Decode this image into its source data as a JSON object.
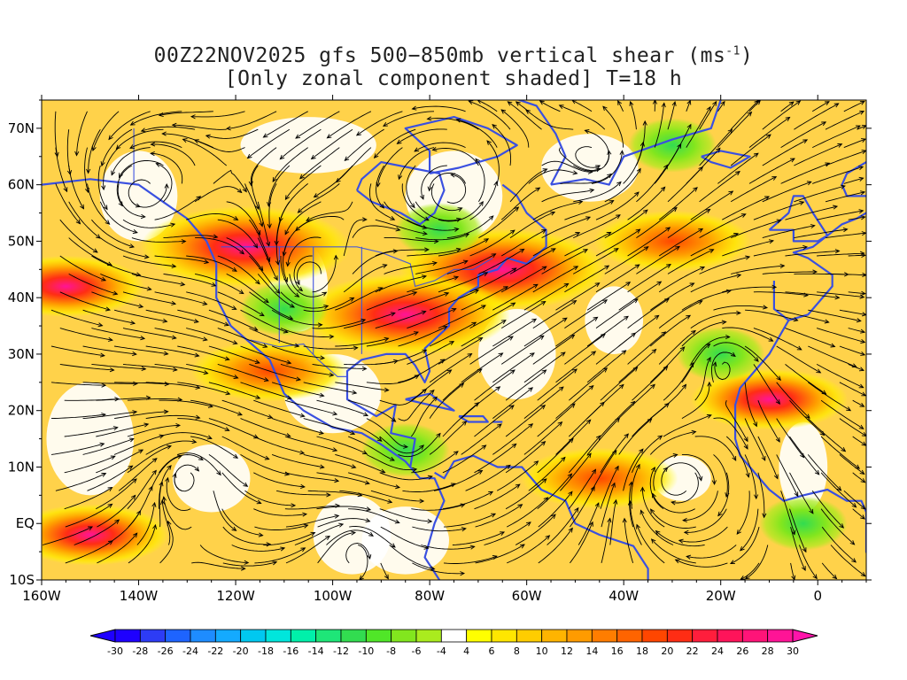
{
  "title": {
    "line1_main": "00Z22NOV2025 gfs 500−850mb vertical shear (ms",
    "line1_sup": "-1",
    "line1_end": ")",
    "line2": "[Only zonal component shaded] T=18 h"
  },
  "map": {
    "lon_range": [
      -160,
      10
    ],
    "lat_range": [
      -10,
      75
    ],
    "y_ticks": [
      {
        "lat": 70,
        "label": "70N"
      },
      {
        "lat": 60,
        "label": "60N"
      },
      {
        "lat": 50,
        "label": "50N"
      },
      {
        "lat": 40,
        "label": "40N"
      },
      {
        "lat": 30,
        "label": "30N"
      },
      {
        "lat": 20,
        "label": "20N"
      },
      {
        "lat": 10,
        "label": "10N"
      },
      {
        "lat": 0,
        "label": "EQ"
      },
      {
        "lat": -10,
        "label": "10S"
      }
    ],
    "x_ticks": [
      {
        "lon": -160,
        "label": "160W"
      },
      {
        "lon": -140,
        "label": "140W"
      },
      {
        "lon": -120,
        "label": "120W"
      },
      {
        "lon": -100,
        "label": "100W"
      },
      {
        "lon": -80,
        "label": "80W"
      },
      {
        "lon": -60,
        "label": "60W"
      },
      {
        "lon": -40,
        "label": "40W"
      },
      {
        "lon": -20,
        "label": "20W"
      },
      {
        "lon": 0,
        "label": "0"
      }
    ],
    "coast_color": "#3a50e0",
    "streamline_color": "#000000",
    "shear_maxima": [
      {
        "lon": -118,
        "lat": 49,
        "value": 28
      },
      {
        "lon": -65,
        "lat": 45,
        "value": 24
      },
      {
        "lon": -85,
        "lat": 37,
        "value": 24
      },
      {
        "lon": -113,
        "lat": 27,
        "value": 20
      },
      {
        "lon": -155,
        "lat": 42,
        "value": 22
      },
      {
        "lon": -10,
        "lat": 22,
        "value": 22
      },
      {
        "lon": -150,
        "lat": -2,
        "value": 22
      },
      {
        "lon": -30,
        "lat": 50,
        "value": 18
      },
      {
        "lon": -45,
        "lat": 8,
        "value": 16
      }
    ],
    "shear_minima": [
      {
        "lon": -20,
        "lat": 30,
        "value": -12
      },
      {
        "lon": -78,
        "lat": 52,
        "value": -10
      },
      {
        "lon": -30,
        "lat": 67,
        "value": -10
      },
      {
        "lon": -3,
        "lat": 0,
        "value": -14
      },
      {
        "lon": -110,
        "lat": 38,
        "value": -10
      },
      {
        "lon": -85,
        "lat": 13,
        "value": -8
      }
    ]
  },
  "colorbar": {
    "levels": [
      "-30",
      "-28",
      "-26",
      "-24",
      "-22",
      "-20",
      "-18",
      "-16",
      "-14",
      "-12",
      "-10",
      "-8",
      "-6",
      "-4",
      "4",
      "6",
      "8",
      "10",
      "12",
      "14",
      "16",
      "18",
      "20",
      "22",
      "24",
      "26",
      "28",
      "30"
    ],
    "colors": [
      "#1e00ff",
      "#2d3cf5",
      "#1e64ff",
      "#1e8cff",
      "#14aaff",
      "#00c8f0",
      "#00e6dc",
      "#00f0aa",
      "#1ee678",
      "#32dc50",
      "#50e628",
      "#82e61e",
      "#aaeb1e",
      "#ffffff",
      "#ffff00",
      "#ffe600",
      "#ffcd00",
      "#ffb400",
      "#ff9b00",
      "#ff7d00",
      "#ff6400",
      "#ff4600",
      "#ff2d14",
      "#ff1e3c",
      "#ff145a",
      "#ff1478",
      "#ff1496"
    ],
    "under_color": "#1e00ff",
    "over_color": "#ff14aa"
  }
}
